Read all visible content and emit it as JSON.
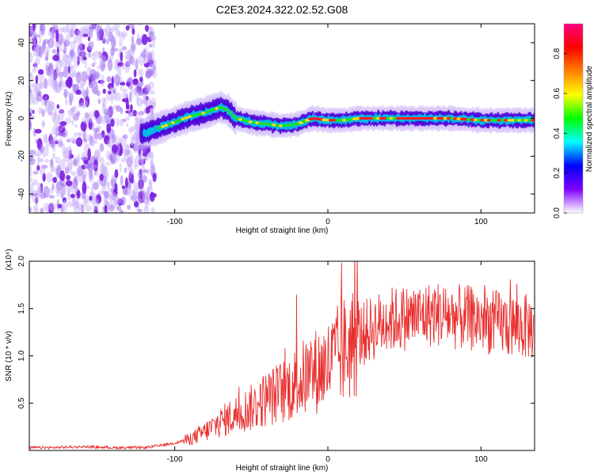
{
  "chart_data": [
    {
      "type": "heatmap",
      "title": "C2E3.2024.322.02.52.G08",
      "xlabel": "Height of straight line (km)",
      "ylabel": "Frequency (Hz)",
      "xlim": [
        -195,
        135
      ],
      "ylim": [
        -50,
        50
      ],
      "xticks": [
        -100,
        0,
        100
      ],
      "yticks": [
        -40,
        -20,
        0,
        20,
        40
      ],
      "colorbar": {
        "label": "Normalized spectral amplitude",
        "range": [
          0,
          0.95
        ],
        "ticks": [
          0.0,
          0.2,
          0.4,
          0.6,
          0.8
        ],
        "colors": [
          "#ffffff",
          "#7f00ff",
          "#0000ff",
          "#00ffff",
          "#00ff00",
          "#ffff00",
          "#ff7f00",
          "#ff0000",
          "#ff007f"
        ]
      },
      "ridge": {
        "x": [
          -120,
          -110,
          -100,
          -90,
          -80,
          -70,
          -65,
          -60,
          -50,
          -40,
          -30,
          -20,
          -10,
          0,
          10,
          20,
          40,
          60,
          80,
          100,
          120,
          135
        ],
        "freq": [
          -8,
          -5,
          -2,
          1,
          3,
          6,
          4,
          0,
          -2,
          -3,
          -4,
          -3,
          0,
          -1,
          -1,
          0,
          0,
          0,
          0,
          -1,
          -1,
          -1
        ]
      }
    },
    {
      "type": "line",
      "xlabel": "Height of straight line (km)",
      "ylabel": "SNR (10 * v/v)",
      "y_multiplier": "(x10⁴)",
      "xlim": [
        -195,
        135
      ],
      "ylim": [
        0,
        2.0
      ],
      "xticks": [
        -100,
        0,
        100
      ],
      "yticks": [
        0.5,
        1.0,
        1.5,
        2.0
      ],
      "ytick_labels": [
        "0.5",
        "1.0",
        "1.5",
        "2.0"
      ],
      "line_color": "#e8302f",
      "series": [
        {
          "x": [
            -195,
            -180,
            -160,
            -140,
            -120,
            -110,
            -100,
            -90,
            -80,
            -70,
            -60,
            -50,
            -40,
            -30,
            -20,
            -10,
            0,
            10,
            20,
            30,
            40,
            50,
            60,
            70,
            80,
            90,
            100,
            110,
            120,
            135
          ],
          "values": [
            0.03,
            0.03,
            0.04,
            0.03,
            0.03,
            0.05,
            0.08,
            0.12,
            0.2,
            0.3,
            0.38,
            0.45,
            0.55,
            0.62,
            0.72,
            0.82,
            0.9,
            1.05,
            1.2,
            1.3,
            1.38,
            1.4,
            1.42,
            1.45,
            1.42,
            1.4,
            1.38,
            1.35,
            1.32,
            1.3
          ]
        }
      ]
    }
  ]
}
